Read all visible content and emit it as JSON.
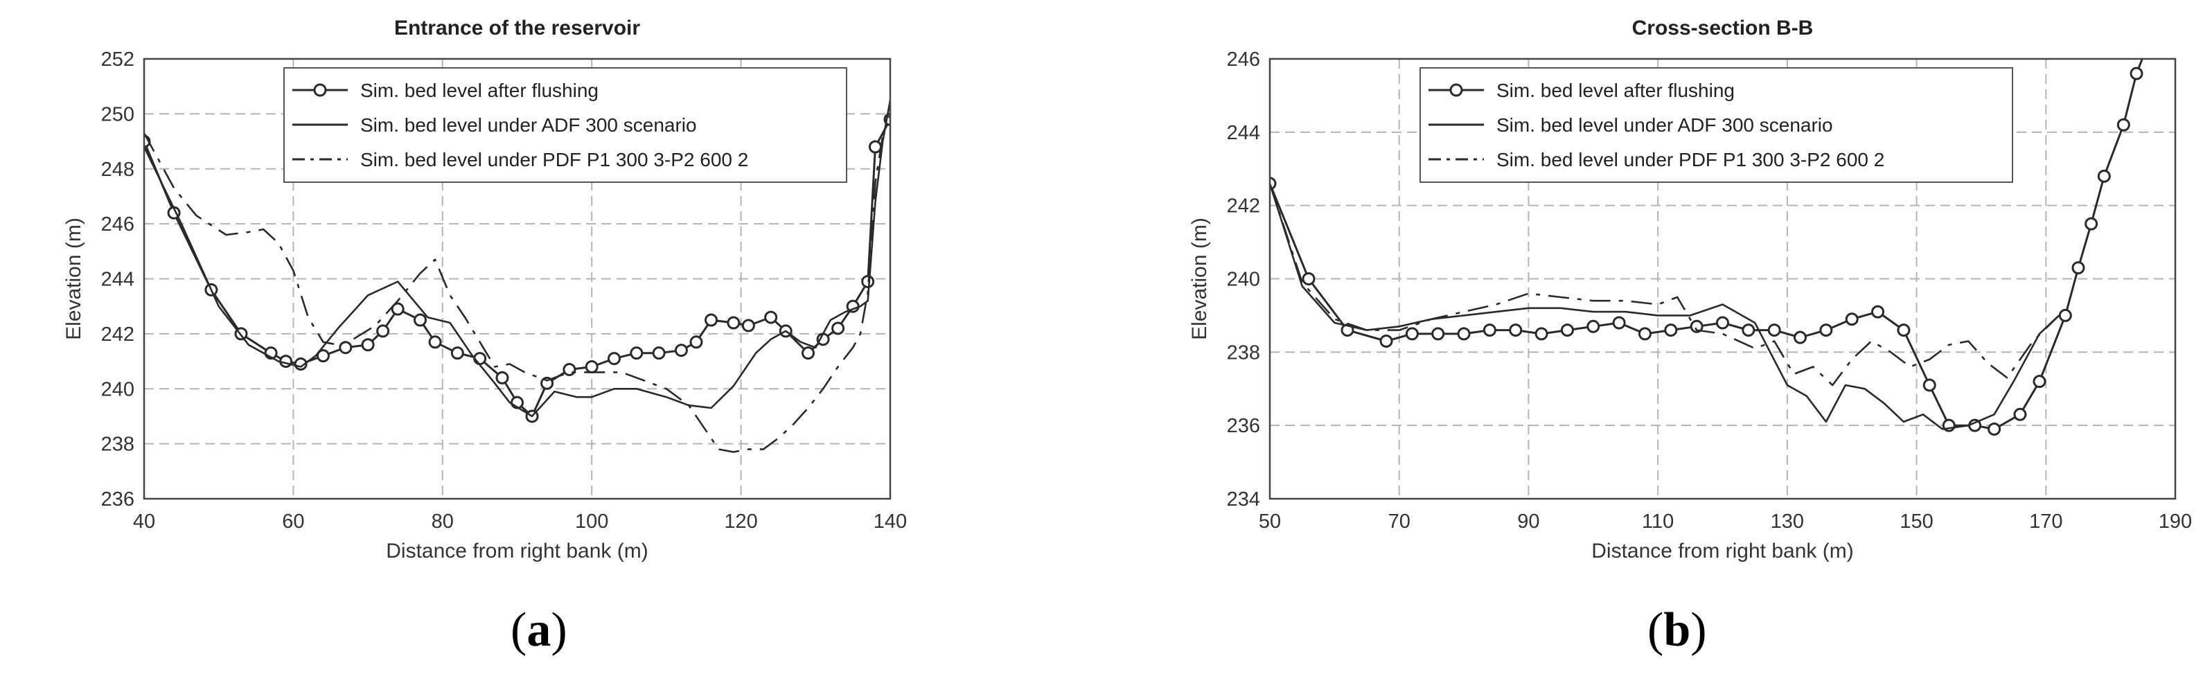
{
  "chart_data": [
    {
      "type": "line",
      "panel_label": "a",
      "title": "Entrance of the reservoir",
      "xlabel": "Distance from right bank (m)",
      "ylabel": "Elevation (m)",
      "xlim": [
        40,
        140
      ],
      "ylim": [
        236,
        252
      ],
      "xticks": [
        40,
        60,
        80,
        100,
        120,
        140
      ],
      "yticks": [
        236,
        238,
        240,
        242,
        244,
        246,
        248,
        250,
        252
      ],
      "grid": true,
      "legend_position": "top-center",
      "series": [
        {
          "name": "Sim. bed level after flushing",
          "style": "solid-circle-markers",
          "x": [
            40,
            44,
            49,
            53,
            57,
            59,
            61,
            64,
            67,
            70,
            72,
            74,
            77,
            79,
            82,
            85,
            88,
            90,
            92,
            94,
            97,
            100,
            103,
            106,
            109,
            112,
            114,
            116,
            119,
            121,
            124,
            126,
            129,
            131,
            133,
            135,
            137,
            138,
            140
          ],
          "y": [
            249.0,
            246.4,
            243.6,
            242.0,
            241.3,
            241.0,
            240.9,
            241.2,
            241.5,
            241.6,
            242.1,
            242.9,
            242.5,
            241.7,
            241.3,
            241.1,
            240.4,
            239.5,
            239.0,
            240.2,
            240.7,
            240.8,
            241.1,
            241.3,
            241.3,
            241.4,
            241.7,
            242.5,
            242.4,
            242.3,
            242.6,
            242.1,
            241.3,
            241.8,
            242.2,
            243.0,
            243.9,
            248.8,
            249.8
          ]
        },
        {
          "name": "Sim. bed level under ADF 300 scenario",
          "style": "solid",
          "x": [
            40,
            45,
            50,
            54,
            58,
            61,
            63,
            66,
            70,
            74,
            78,
            81,
            84,
            87,
            89,
            92,
            95,
            98,
            100,
            103,
            106,
            110,
            113,
            116,
            119,
            122,
            124,
            126,
            128,
            130,
            132,
            134,
            136,
            137,
            138,
            139,
            140
          ],
          "y": [
            248.8,
            246.0,
            243.0,
            241.6,
            241.0,
            240.8,
            241.2,
            242.2,
            243.4,
            243.9,
            242.6,
            242.4,
            241.2,
            240.2,
            239.5,
            239.0,
            239.9,
            239.7,
            239.7,
            240.0,
            240.0,
            239.7,
            239.4,
            239.3,
            240.1,
            241.3,
            241.8,
            242.1,
            241.7,
            241.5,
            242.5,
            242.8,
            243.0,
            243.2,
            246.8,
            249.0,
            250.5
          ]
        },
        {
          "name": "Sim. bed level under PDF P1 300 3-P2 600 2",
          "style": "dash-dot",
          "x": [
            40,
            44,
            47,
            51,
            54,
            56,
            58,
            60,
            62,
            64,
            66,
            68,
            71,
            74,
            77,
            79,
            81,
            83,
            85,
            87,
            89,
            91,
            94,
            97,
            100,
            104,
            107,
            110,
            113,
            115,
            117,
            119,
            121,
            123,
            125,
            127,
            129,
            131,
            133,
            135,
            136,
            137,
            138,
            139,
            140
          ],
          "y": [
            249.3,
            247.3,
            246.3,
            245.6,
            245.7,
            245.8,
            245.3,
            244.3,
            242.6,
            241.7,
            241.6,
            241.8,
            242.3,
            243.2,
            244.2,
            244.7,
            243.4,
            242.6,
            241.7,
            240.8,
            240.9,
            240.6,
            240.3,
            240.6,
            240.6,
            240.6,
            240.3,
            240.0,
            239.4,
            238.6,
            237.8,
            237.7,
            237.8,
            237.8,
            238.2,
            238.7,
            239.3,
            240.0,
            240.8,
            241.5,
            242.0,
            243.5,
            247.5,
            249.2,
            250.0
          ]
        }
      ]
    },
    {
      "type": "line",
      "panel_label": "b",
      "title": "Cross-section B-B",
      "xlabel": "Distance from right bank (m)",
      "ylabel": "Elevation (m)",
      "xlim": [
        50,
        190
      ],
      "ylim": [
        234,
        246
      ],
      "xticks": [
        50,
        70,
        90,
        110,
        130,
        150,
        170,
        190
      ],
      "yticks": [
        234,
        236,
        238,
        240,
        242,
        244,
        246
      ],
      "grid": true,
      "legend_position": "top-center",
      "series": [
        {
          "name": "Sim. bed level after flushing",
          "style": "solid-circle-markers",
          "x": [
            50,
            56,
            62,
            68,
            72,
            76,
            80,
            84,
            88,
            92,
            96,
            100,
            104,
            108,
            112,
            116,
            120,
            124,
            128,
            132,
            136,
            140,
            144,
            148,
            152,
            155,
            159,
            162,
            166,
            169,
            173,
            175,
            177,
            179,
            182,
            184,
            186
          ],
          "y": [
            242.6,
            240.0,
            238.6,
            238.3,
            238.5,
            238.5,
            238.5,
            238.6,
            238.6,
            238.5,
            238.6,
            238.7,
            238.8,
            238.5,
            238.6,
            238.7,
            238.8,
            238.6,
            238.6,
            238.4,
            238.6,
            238.9,
            239.1,
            238.6,
            237.1,
            236.0,
            236.0,
            235.9,
            236.3,
            237.2,
            239.0,
            240.3,
            241.5,
            242.8,
            244.2,
            245.6,
            246.5
          ]
        },
        {
          "name": "Sim. bed level under ADF 300 scenario",
          "style": "solid",
          "x": [
            50,
            55,
            60,
            65,
            70,
            75,
            80,
            85,
            90,
            95,
            100,
            105,
            110,
            115,
            120,
            125,
            130,
            133,
            136,
            139,
            142,
            145,
            148,
            151,
            154,
            158,
            162,
            165,
            169,
            172
          ],
          "y": [
            242.6,
            239.8,
            238.8,
            238.6,
            238.7,
            238.9,
            239.0,
            239.1,
            239.2,
            239.2,
            239.1,
            239.1,
            239.0,
            239.0,
            239.3,
            238.8,
            237.1,
            236.8,
            236.1,
            237.1,
            237.0,
            236.6,
            236.1,
            236.3,
            235.9,
            236.0,
            236.3,
            237.2,
            238.5,
            239.0
          ]
        },
        {
          "name": "Sim. bed level under PDF P1 300 3-P2 600 2",
          "style": "dash-dot",
          "x": [
            50,
            55,
            60,
            65,
            70,
            75,
            80,
            85,
            90,
            95,
            100,
            105,
            110,
            113,
            116,
            120,
            125,
            128,
            131,
            134,
            137,
            140,
            143,
            146,
            149,
            152,
            155,
            158,
            161,
            164,
            168,
            172
          ],
          "y": [
            242.6,
            239.9,
            238.9,
            238.6,
            238.6,
            238.9,
            239.1,
            239.3,
            239.6,
            239.5,
            239.4,
            239.4,
            239.3,
            239.5,
            238.6,
            238.5,
            238.1,
            238.3,
            237.4,
            237.6,
            237.1,
            237.8,
            238.3,
            238.0,
            237.6,
            237.8,
            238.2,
            238.3,
            237.7,
            237.3,
            238.3,
            239.0
          ]
        }
      ]
    }
  ]
}
